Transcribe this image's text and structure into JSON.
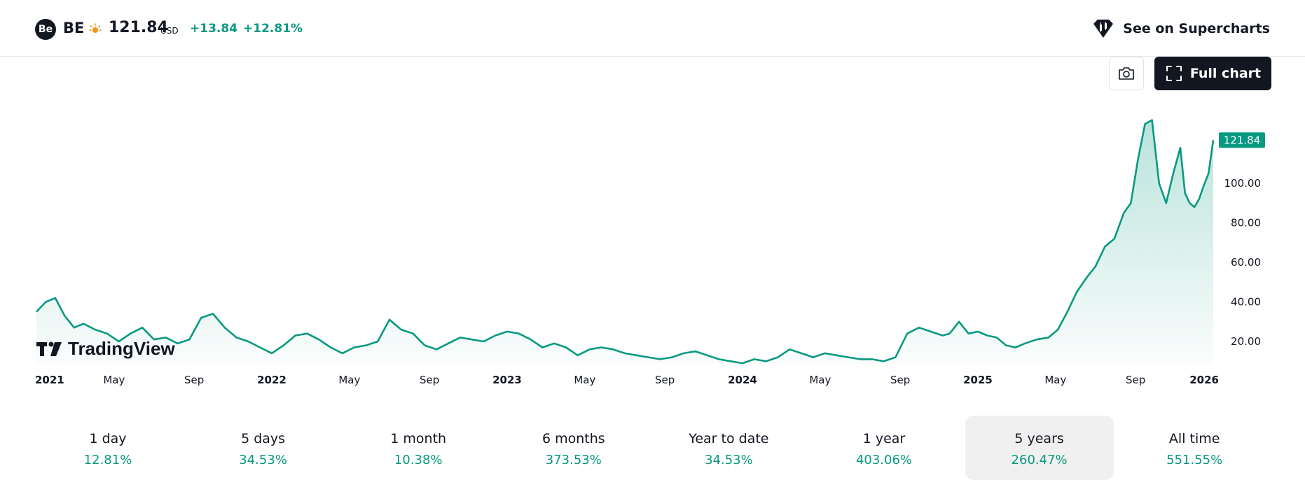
{
  "header": {
    "logo_text": "Be",
    "ticker": "BE",
    "price": "121.84",
    "currency": "USD",
    "change_abs": "+13.84",
    "change_pct": "+12.81%",
    "market_icon": "sun-icon",
    "supercharts_label": "See on Supercharts",
    "supercharts_icon": "supercharts-logo-icon"
  },
  "toolbar": {
    "camera_icon": "camera-icon",
    "fullchart_label": "Full chart",
    "fullchart_icon": "fullscreen-icon"
  },
  "watermark": "TradingView",
  "colors": {
    "line": "#089981",
    "positive": "#089981",
    "dark": "#131722",
    "price_label_bg": "#089981"
  },
  "chart_data": {
    "type": "area",
    "ylim": [
      8,
      135
    ],
    "y_ticks": [
      "20.00",
      "40.00",
      "60.00",
      "80.00",
      "100.00"
    ],
    "y_tick_values": [
      20,
      40,
      60,
      80,
      100
    ],
    "last_price_label": "121.84",
    "last_price": 121.84,
    "x_tick_labels": [
      {
        "label": "2021",
        "year": true
      },
      {
        "label": "May",
        "year": false
      },
      {
        "label": "Sep",
        "year": false
      },
      {
        "label": "2022",
        "year": true
      },
      {
        "label": "May",
        "year": false
      },
      {
        "label": "Sep",
        "year": false
      },
      {
        "label": "2023",
        "year": true
      },
      {
        "label": "May",
        "year": false
      },
      {
        "label": "Sep",
        "year": false
      },
      {
        "label": "2024",
        "year": true
      },
      {
        "label": "May",
        "year": false
      },
      {
        "label": "Sep",
        "year": false
      },
      {
        "label": "2025",
        "year": true
      },
      {
        "label": "May",
        "year": false
      },
      {
        "label": "Sep",
        "year": false
      },
      {
        "label": "2026",
        "year": true
      }
    ],
    "x_tick_times": [
      2021.0,
      2021.33,
      2021.67,
      2022.0,
      2022.33,
      2022.67,
      2023.0,
      2023.33,
      2023.67,
      2024.0,
      2024.33,
      2024.67,
      2025.0,
      2025.33,
      2025.67,
      2026.0
    ],
    "x": [
      2021.0,
      2021.04,
      2021.08,
      2021.12,
      2021.16,
      2021.2,
      2021.25,
      2021.3,
      2021.35,
      2021.4,
      2021.45,
      2021.5,
      2021.55,
      2021.6,
      2021.65,
      2021.7,
      2021.75,
      2021.8,
      2021.85,
      2021.9,
      2021.95,
      2022.0,
      2022.05,
      2022.1,
      2022.15,
      2022.2,
      2022.25,
      2022.3,
      2022.35,
      2022.4,
      2022.45,
      2022.5,
      2022.55,
      2022.6,
      2022.65,
      2022.7,
      2022.75,
      2022.8,
      2022.85,
      2022.9,
      2022.95,
      2023.0,
      2023.05,
      2023.1,
      2023.15,
      2023.2,
      2023.25,
      2023.3,
      2023.35,
      2023.4,
      2023.45,
      2023.5,
      2023.55,
      2023.6,
      2023.65,
      2023.7,
      2023.75,
      2023.8,
      2023.85,
      2023.9,
      2023.95,
      2024.0,
      2024.05,
      2024.1,
      2024.15,
      2024.2,
      2024.25,
      2024.3,
      2024.35,
      2024.4,
      2024.45,
      2024.5,
      2024.55,
      2024.6,
      2024.65,
      2024.7,
      2024.75,
      2024.8,
      2024.85,
      2024.88,
      2024.92,
      2024.96,
      2025.0,
      2025.04,
      2025.08,
      2025.12,
      2025.16,
      2025.2,
      2025.25,
      2025.3,
      2025.34,
      2025.38,
      2025.42,
      2025.46,
      2025.5,
      2025.54,
      2025.58,
      2025.62,
      2025.65,
      2025.68,
      2025.71,
      2025.74,
      2025.77,
      2025.8,
      2025.83,
      2025.86,
      2025.88,
      2025.9,
      2025.92,
      2025.94,
      2025.96,
      2025.98,
      2026.0
    ],
    "values": [
      35,
      40,
      42,
      33,
      27,
      29,
      26,
      24,
      20,
      24,
      27,
      21,
      22,
      19,
      21,
      32,
      34,
      27,
      22,
      20,
      17,
      14,
      18,
      23,
      24,
      21,
      17,
      14,
      17,
      18,
      20,
      31,
      26,
      24,
      18,
      16,
      19,
      22,
      21,
      20,
      23,
      25,
      24,
      21,
      17,
      19,
      17,
      13,
      16,
      17,
      16,
      14,
      13,
      12,
      11,
      12,
      14,
      15,
      13,
      11,
      10,
      9,
      11,
      10,
      12,
      16,
      14,
      12,
      14,
      13,
      12,
      11,
      11,
      10,
      12,
      24,
      27,
      25,
      23,
      24,
      30,
      24,
      25,
      23,
      22,
      18,
      17,
      19,
      21,
      22,
      26,
      35,
      45,
      52,
      58,
      68,
      72,
      85,
      90,
      112,
      130,
      132,
      100,
      90,
      105,
      118,
      95,
      90,
      88,
      92,
      99,
      105,
      121.84
    ]
  },
  "timeframes": [
    {
      "label": "1 day",
      "value": "12.81%",
      "active": false
    },
    {
      "label": "5 days",
      "value": "34.53%",
      "active": false
    },
    {
      "label": "1 month",
      "value": "10.38%",
      "active": false
    },
    {
      "label": "6 months",
      "value": "373.53%",
      "active": false
    },
    {
      "label": "Year to date",
      "value": "34.53%",
      "active": false
    },
    {
      "label": "1 year",
      "value": "403.06%",
      "active": false
    },
    {
      "label": "5 years",
      "value": "260.47%",
      "active": true
    },
    {
      "label": "All time",
      "value": "551.55%",
      "active": false
    }
  ]
}
